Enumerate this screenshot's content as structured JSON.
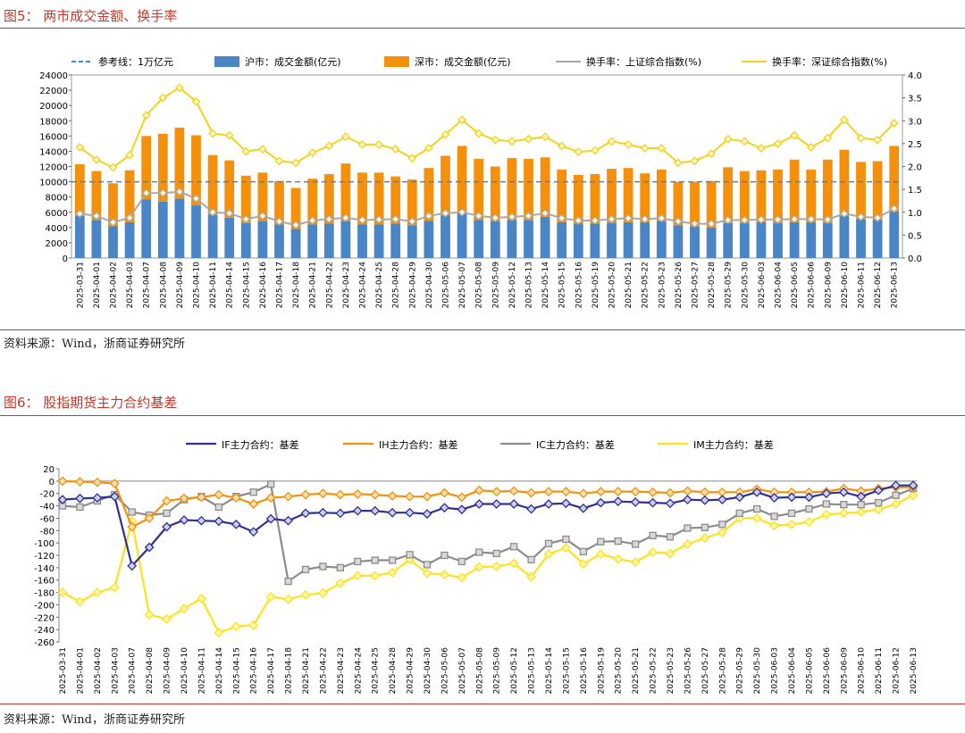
{
  "fig5": {
    "title": "图5： 两市成交金额、换手率",
    "source": "资料来源：Wind，浙商证券研究所"
  },
  "fig6": {
    "title": "图6： 股指期货主力合约基差",
    "source": "资料来源：Wind，浙商证券研究所"
  },
  "colors": {
    "title_red": "#c0392b",
    "sh_blue": "#4a86c5",
    "sz_orange": "#f4900c",
    "sh_turnover_gray": "#a8a8a8",
    "sz_turnover_yellow": "#f2d21a",
    "ref_dashed": "#4a86c5",
    "if_navy": "#2e3192",
    "ih_orange": "#f4900c",
    "ic_gray": "#8c8c8c",
    "im_yellow": "#ffe11a"
  },
  "chart_data": [
    {
      "type": "bar",
      "stacked": true,
      "categories": [
        "2025-03-31",
        "2025-04-01",
        "2025-04-02",
        "2025-04-03",
        "2025-04-07",
        "2025-04-08",
        "2025-04-09",
        "2025-04-10",
        "2025-04-11",
        "2025-04-14",
        "2025-04-15",
        "2025-04-16",
        "2025-04-17",
        "2025-04-18",
        "2025-04-21",
        "2025-04-22",
        "2025-04-23",
        "2025-04-24",
        "2025-04-25",
        "2025-04-28",
        "2025-04-29",
        "2025-04-30",
        "2025-05-06",
        "2025-05-07",
        "2025-05-08",
        "2025-05-09",
        "2025-05-12",
        "2025-05-13",
        "2025-05-14",
        "2025-05-15",
        "2025-05-16",
        "2025-05-19",
        "2025-05-20",
        "2025-05-21",
        "2025-05-22",
        "2025-05-23",
        "2025-05-26",
        "2025-05-27",
        "2025-05-28",
        "2025-05-29",
        "2025-05-30",
        "2025-06-03",
        "2025-06-04",
        "2025-06-05",
        "2025-06-06",
        "2025-06-09",
        "2025-06-10",
        "2025-06-11",
        "2025-06-12",
        "2025-06-13"
      ],
      "legend": [
        "参考线：1万亿元",
        "沪市：成交金额(亿元)",
        "深市：成交金额(亿元)",
        "换手率：上证综合指数(%)",
        "换手率：深证综合指数(%)"
      ],
      "reference_line": 10000,
      "series": [
        {
          "name": "沪市：成交金额(亿元)",
          "kind": "bar",
          "values": [
            5500,
            5000,
            4200,
            4700,
            7700,
            7400,
            7800,
            6900,
            5700,
            5300,
            4600,
            4800,
            4400,
            3800,
            4400,
            4500,
            4800,
            4400,
            4400,
            4500,
            4300,
            4900,
            5600,
            6100,
            5000,
            4800,
            5000,
            5000,
            5400,
            4700,
            4500,
            4500,
            4600,
            4700,
            4700,
            4800,
            4300,
            4100,
            4000,
            4600,
            4600,
            4700,
            4600,
            4700,
            4700,
            4600,
            5500,
            5100,
            5000,
            6100
          ]
        },
        {
          "name": "深市：成交金额(亿元)",
          "kind": "bar",
          "values": [
            6800,
            6400,
            5600,
            6800,
            8300,
            8900,
            9300,
            9200,
            7800,
            7500,
            6200,
            6400,
            5700,
            5400,
            6000,
            6500,
            7600,
            6800,
            6800,
            6200,
            6000,
            6900,
            7800,
            8600,
            8000,
            7200,
            8100,
            8000,
            7800,
            6900,
            6400,
            6500,
            7100,
            7100,
            6400,
            6800,
            5700,
            5900,
            6100,
            7300,
            6800,
            6800,
            7000,
            8200,
            6900,
            8300,
            8700,
            7500,
            7700,
            8600
          ]
        },
        {
          "name": "换手率：上证综合指数(%)",
          "kind": "line",
          "axis": "right",
          "values": [
            0.97,
            0.92,
            0.78,
            0.88,
            1.42,
            1.42,
            1.45,
            1.3,
            1.0,
            0.98,
            0.85,
            0.92,
            0.8,
            0.72,
            0.82,
            0.85,
            0.88,
            0.83,
            0.84,
            0.85,
            0.8,
            0.92,
            0.98,
            1.0,
            0.92,
            0.88,
            0.9,
            0.92,
            0.98,
            0.87,
            0.82,
            0.82,
            0.85,
            0.87,
            0.85,
            0.87,
            0.8,
            0.75,
            0.75,
            0.83,
            0.83,
            0.84,
            0.84,
            0.85,
            0.85,
            0.84,
            0.97,
            0.9,
            0.88,
            1.08
          ]
        },
        {
          "name": "换手率：深证综合指数(%)",
          "kind": "line",
          "axis": "right",
          "values": [
            2.42,
            2.15,
            1.98,
            2.25,
            3.12,
            3.5,
            3.72,
            3.42,
            2.72,
            2.68,
            2.33,
            2.38,
            2.12,
            2.08,
            2.3,
            2.45,
            2.65,
            2.48,
            2.48,
            2.38,
            2.18,
            2.4,
            2.7,
            3.02,
            2.72,
            2.58,
            2.55,
            2.6,
            2.65,
            2.45,
            2.32,
            2.35,
            2.55,
            2.48,
            2.4,
            2.4,
            2.08,
            2.12,
            2.28,
            2.6,
            2.55,
            2.4,
            2.5,
            2.68,
            2.42,
            2.62,
            3.02,
            2.62,
            2.58,
            2.95
          ]
        }
      ],
      "y_left": {
        "min": 0,
        "max": 24000,
        "ticks": [
          "0",
          "2000",
          "4000",
          "6000",
          "8000",
          "10000",
          "12000",
          "14000",
          "16000",
          "18000",
          "20000",
          "22000",
          "24000"
        ]
      },
      "y_right": {
        "min": 0,
        "max": 4,
        "ticks": [
          "0.0",
          "0.5",
          "1.0",
          "1.5",
          "2.0",
          "2.5",
          "3.0",
          "3.5",
          "4.0"
        ]
      },
      "grid": false,
      "legend_position": "top"
    },
    {
      "type": "line",
      "categories": [
        "2025-03-31",
        "2025-04-01",
        "2025-04-02",
        "2025-04-03",
        "2025-04-07",
        "2025-04-08",
        "2025-04-09",
        "2025-04-10",
        "2025-04-11",
        "2025-04-14",
        "2025-04-15",
        "2025-04-16",
        "2025-04-17",
        "2025-04-18",
        "2025-04-21",
        "2025-04-22",
        "2025-04-23",
        "2025-04-24",
        "2025-04-25",
        "2025-04-28",
        "2025-04-29",
        "2025-04-30",
        "2025-05-06",
        "2025-05-07",
        "2025-05-08",
        "2025-05-09",
        "2025-05-12",
        "2025-05-13",
        "2025-05-14",
        "2025-05-15",
        "2025-05-16",
        "2025-05-19",
        "2025-05-20",
        "2025-05-21",
        "2025-05-22",
        "2025-05-23",
        "2025-05-26",
        "2025-05-27",
        "2025-05-28",
        "2025-05-29",
        "2025-05-30",
        "2025-06-03",
        "2025-06-04",
        "2025-06-05",
        "2025-06-06",
        "2025-06-09",
        "2025-06-10",
        "2025-06-11",
        "2025-06-12",
        "2025-06-13"
      ],
      "series": [
        {
          "name": "IF主力合约：基差",
          "values": [
            -30,
            -28,
            -27,
            -25,
            -137,
            -107,
            -74,
            -63,
            -64,
            -65,
            -70,
            -82,
            -61,
            -64,
            -52,
            -51,
            -52,
            -48,
            -48,
            -51,
            -51,
            -53,
            -43,
            -46,
            -37,
            -37,
            -37,
            -45,
            -37,
            -36,
            -44,
            -35,
            -33,
            -34,
            -35,
            -36,
            -30,
            -31,
            -30,
            -26,
            -18,
            -27,
            -26,
            -26,
            -20,
            -18,
            -25,
            -15,
            -7,
            -7
          ]
        },
        {
          "name": "IH主力合约：基差",
          "values": [
            0,
            -1,
            -2,
            -4,
            -74,
            -60,
            -32,
            -28,
            -26,
            -22,
            -27,
            -37,
            -27,
            -25,
            -22,
            -20,
            -22,
            -21,
            -22,
            -24,
            -25,
            -25,
            -19,
            -26,
            -15,
            -17,
            -16,
            -19,
            -17,
            -17,
            -20,
            -17,
            -17,
            -17,
            -18,
            -19,
            -16,
            -18,
            -18,
            -18,
            -13,
            -18,
            -18,
            -18,
            -17,
            -12,
            -16,
            -12,
            -10,
            -10
          ]
        },
        {
          "name": "IC主力合约：基差",
          "values": [
            -40,
            -42,
            -32,
            -22,
            -50,
            -55,
            -52,
            -30,
            -25,
            -42,
            -25,
            -18,
            -5,
            -162,
            -143,
            -138,
            -140,
            -130,
            -128,
            -128,
            -119,
            -135,
            -120,
            -130,
            -115,
            -117,
            -106,
            -127,
            -101,
            -94,
            -114,
            -98,
            -97,
            -102,
            -88,
            -90,
            -76,
            -75,
            -70,
            -52,
            -45,
            -57,
            -52,
            -45,
            -37,
            -38,
            -38,
            -35,
            -23,
            -12
          ]
        },
        {
          "name": "IM主力合约：基差",
          "values": [
            -180,
            -195,
            -180,
            -172,
            -65,
            -216,
            -223,
            -206,
            -190,
            -245,
            -235,
            -233,
            -187,
            -191,
            -184,
            -181,
            -165,
            -153,
            -153,
            -148,
            -127,
            -149,
            -151,
            -156,
            -139,
            -138,
            -133,
            -155,
            -118,
            -108,
            -134,
            -118,
            -126,
            -131,
            -115,
            -117,
            -102,
            -92,
            -83,
            -60,
            -60,
            -72,
            -70,
            -66,
            -54,
            -52,
            -50,
            -46,
            -37,
            -23
          ]
        }
      ],
      "y": {
        "min": -260,
        "max": 20,
        "ticks": [
          "20",
          "0",
          "-20",
          "-40",
          "-60",
          "-80",
          "-100",
          "-120",
          "-140",
          "-160",
          "-180",
          "-200",
          "-220",
          "-240",
          "-260"
        ]
      },
      "grid": false,
      "legend_position": "top"
    }
  ]
}
